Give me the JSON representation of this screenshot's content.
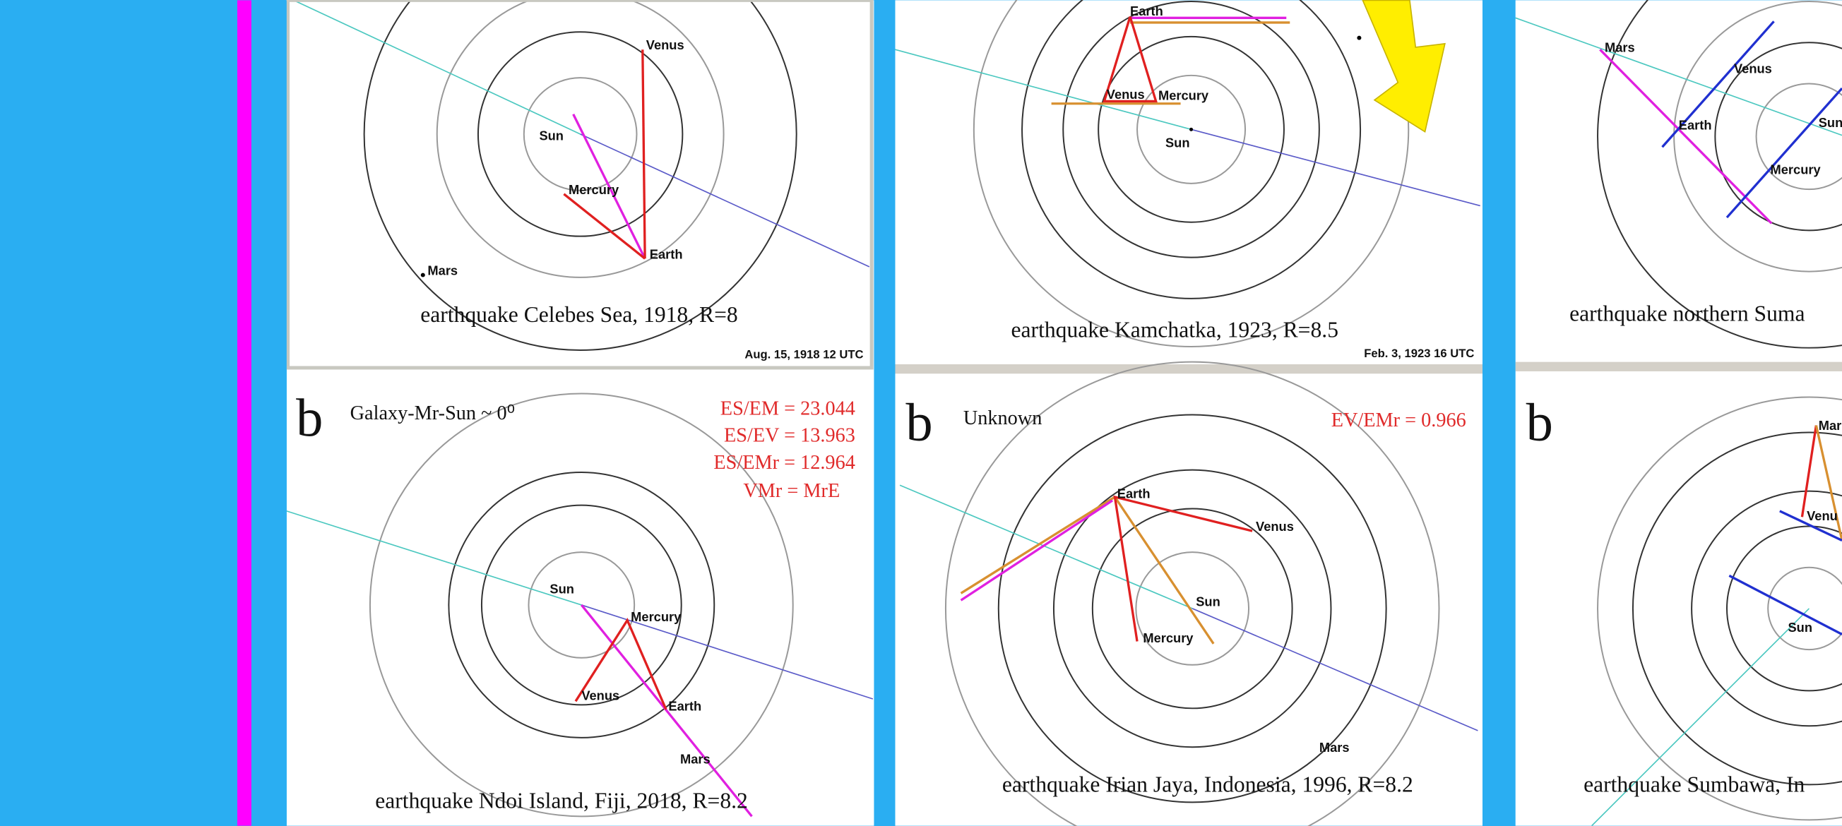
{
  "panels": [
    {
      "caption": "earthquake Celebes  Sea, 1918, R=8",
      "date": "Aug. 15, 1918   12 UTC",
      "labels": [
        "Venus",
        "Sun",
        "Mercury",
        "Earth",
        "Mars"
      ]
    },
    {
      "caption": "earthquake Kamchatka, 1923, R=8.5",
      "date": "Feb. 3, 1923   16 UTC",
      "labels": [
        "Earth",
        "Venus",
        "Mercury",
        "Sun"
      ]
    },
    {
      "caption": "earthquake northern Suma",
      "labels": [
        "Mars",
        "Venus",
        "Earth",
        "Sun",
        "Mercury"
      ]
    },
    {
      "letter": "b",
      "note": "Galaxy-Mr-Sun ~ 0⁰",
      "stats": [
        "ES/EM  = 23.044",
        "ES/EV  = 13.963",
        "ES/EMr = 12.964",
        "VMr = MrE"
      ],
      "caption": "earthquake Ndoi Island, Fiji, 2018, R=8.2",
      "labels": [
        "Sun",
        "Mercury",
        "Venus",
        "Earth",
        "Mars"
      ]
    },
    {
      "letter": "b",
      "note": "Unknown",
      "stats": [
        "EV/EMr  = 0.966"
      ],
      "caption": "earthquake Irian Jaya, Indonesia, 1996, R=8.2",
      "labels": [
        "Earth",
        "Venus",
        "Sun",
        "Mercury",
        "Mars"
      ]
    },
    {
      "letter": "b",
      "caption": "earthquake Sumbawa, In",
      "labels": [
        "Mar",
        "Venu",
        "Sun"
      ]
    }
  ]
}
